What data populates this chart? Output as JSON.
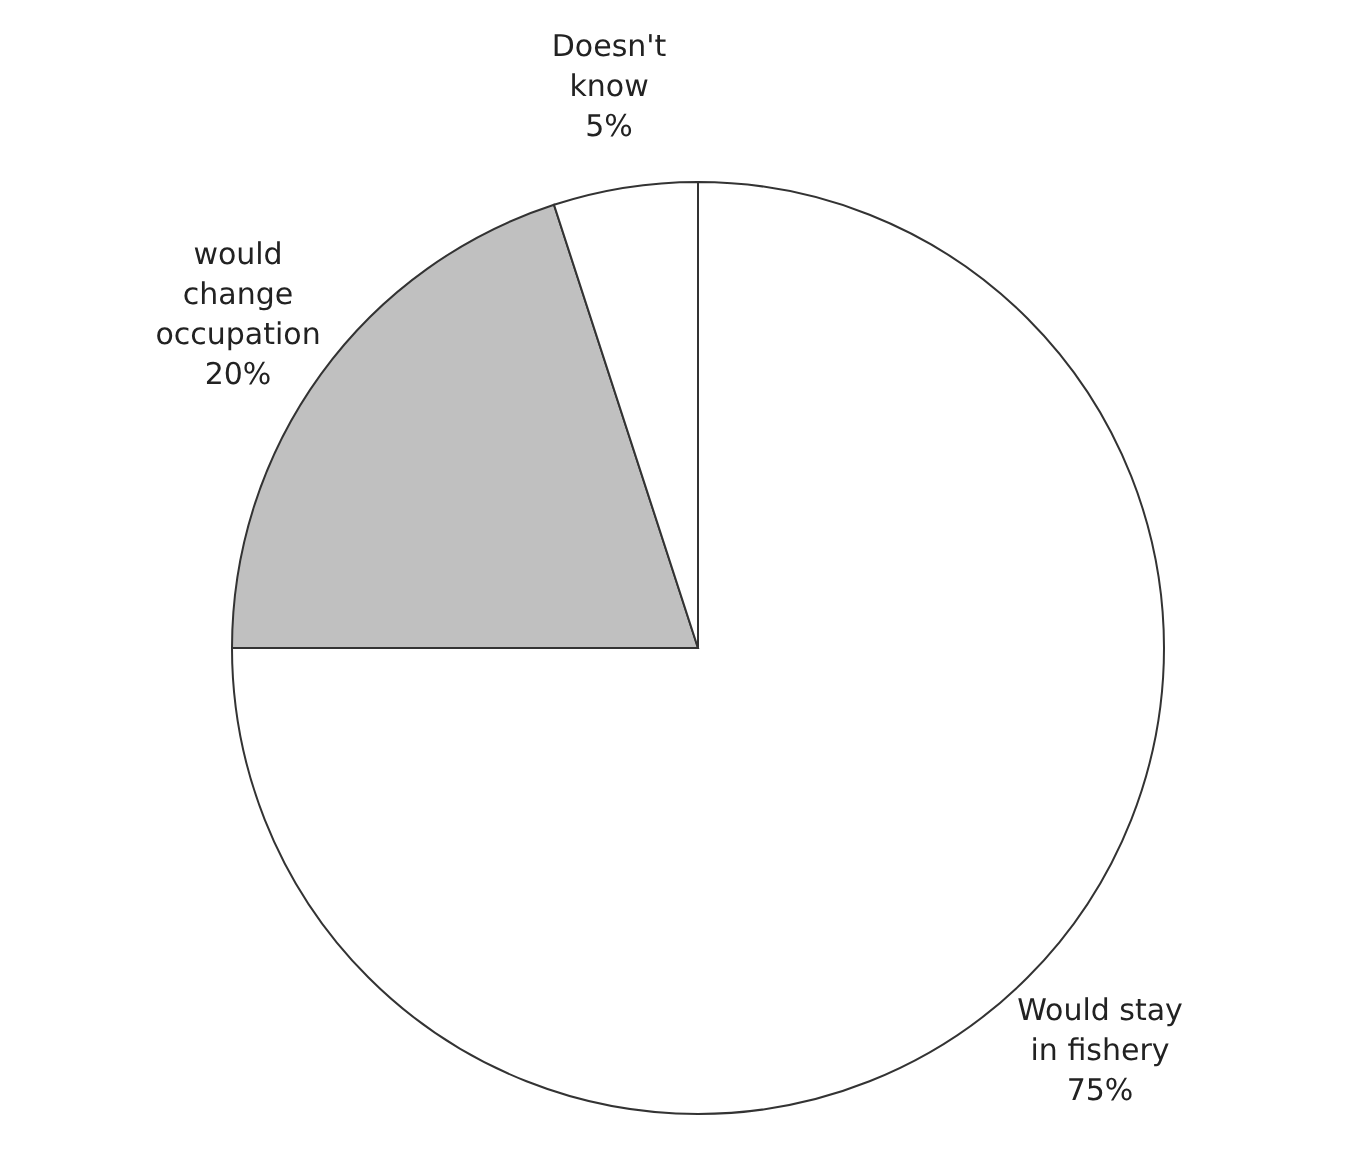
{
  "chart_data": {
    "type": "pie",
    "categories": [
      "Would stay in fishery",
      "would change occupation",
      "Doesn't know"
    ],
    "values": [
      75,
      20,
      5
    ],
    "value_labels": [
      "75%",
      "20%",
      "5%"
    ],
    "colors": [
      "#ffffff",
      "#c0c0c0",
      "#ffffff"
    ]
  }
}
